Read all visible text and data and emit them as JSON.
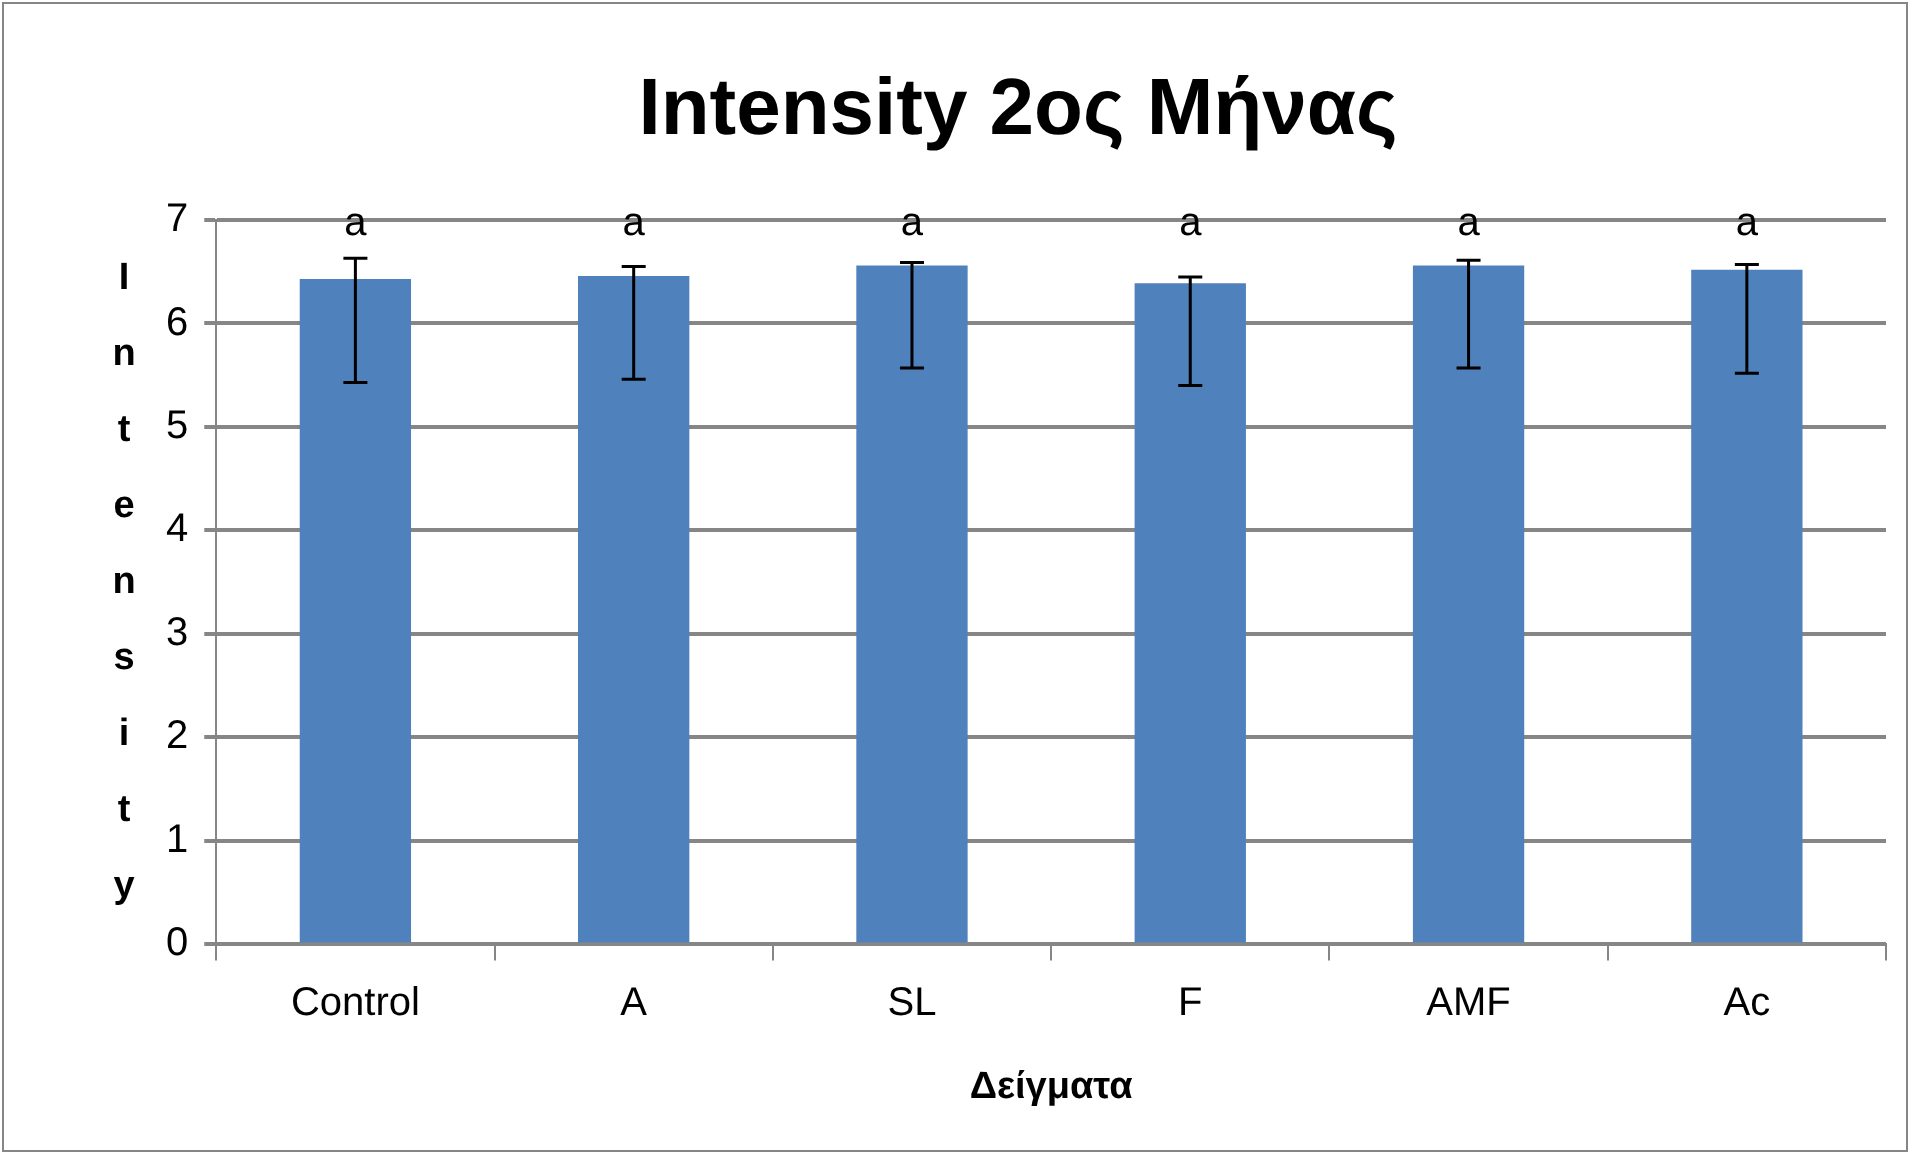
{
  "chart_data": {
    "type": "bar",
    "title": "Intensity 2ος Μήνας",
    "xlabel": "Δείγματα",
    "ylabel": "Intensity",
    "categories": [
      "Control",
      "A",
      "SL",
      "F",
      "AMF",
      "Ac"
    ],
    "values": [
      6.43,
      6.46,
      6.56,
      6.39,
      6.56,
      6.52
    ],
    "errors": [
      [
        5.43,
        6.63
      ],
      [
        5.46,
        6.55
      ],
      [
        5.57,
        6.59
      ],
      [
        5.4,
        6.45
      ],
      [
        5.57,
        6.61
      ],
      [
        5.52,
        6.57
      ]
    ],
    "color": "#4f81bd",
    "ylim": [
      0,
      7
    ],
    "yticks": [
      0,
      1,
      2,
      3,
      4,
      5,
      6,
      7
    ],
    "grid": "y",
    "legend": false,
    "annotations": [
      "a",
      "a",
      "a",
      "a",
      "a",
      "a"
    ]
  }
}
